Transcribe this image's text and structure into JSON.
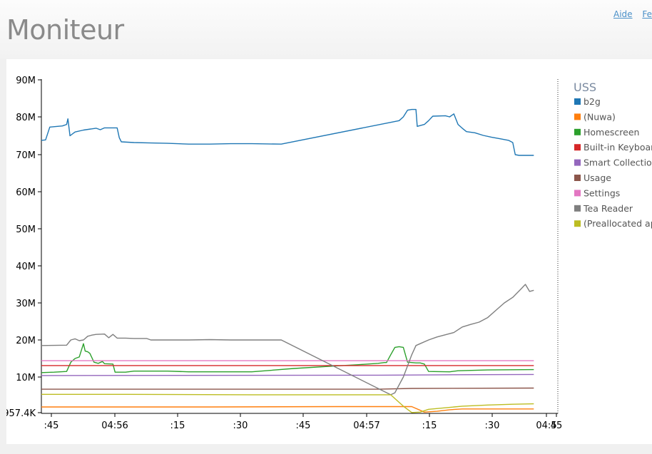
{
  "header": {
    "title": "Moniteur",
    "links": [
      "Aide",
      "Fe"
    ]
  },
  "chart_data": {
    "type": "line",
    "legend_title": "USS",
    "legend_position": "right",
    "y_ticks": [
      "957.4K",
      "10M",
      "20M",
      "30M",
      "40M",
      "50M",
      "60M",
      "70M",
      "80M",
      "90M"
    ],
    "x_ticks": [
      ":45",
      "04:56",
      ":15",
      ":30",
      ":45",
      "04:57",
      ":15",
      ":30",
      "04:5",
      "45"
    ],
    "ylim_mb": [
      0.957,
      90
    ],
    "xlim_s": [
      0,
      123
    ],
    "series": [
      {
        "name": "b2g",
        "color": "#1f77b4",
        "points": [
          [
            0,
            73.8
          ],
          [
            1,
            73.9
          ],
          [
            2,
            77.3
          ],
          [
            5,
            77.6
          ],
          [
            6,
            78
          ],
          [
            6.3,
            79.5
          ],
          [
            6.8,
            75
          ],
          [
            8,
            76
          ],
          [
            10,
            76.5
          ],
          [
            13,
            77
          ],
          [
            14,
            76.6
          ],
          [
            15,
            77.1
          ],
          [
            18,
            77.1
          ],
          [
            18.5,
            74.5
          ],
          [
            19,
            73.4
          ],
          [
            22,
            73.2
          ],
          [
            26,
            73.1
          ],
          [
            30,
            73
          ],
          [
            35,
            72.8
          ],
          [
            40,
            72.8
          ],
          [
            45,
            72.9
          ],
          [
            50,
            72.9
          ],
          [
            57,
            72.8
          ],
          [
            85,
            79
          ],
          [
            86,
            80
          ],
          [
            87,
            81.8
          ],
          [
            88,
            82
          ],
          [
            89,
            82
          ],
          [
            89.3,
            77.5
          ],
          [
            91,
            78
          ],
          [
            92,
            79
          ],
          [
            93,
            80.2
          ],
          [
            96,
            80.3
          ],
          [
            97,
            80
          ],
          [
            98,
            80.8
          ],
          [
            99,
            78
          ],
          [
            100,
            77
          ],
          [
            101,
            76.1
          ],
          [
            103,
            75.8
          ],
          [
            105,
            75.1
          ],
          [
            107,
            74.6
          ],
          [
            109,
            74.2
          ],
          [
            111,
            73.8
          ],
          [
            112,
            73.2
          ],
          [
            112.6,
            70
          ],
          [
            113.5,
            69.8
          ],
          [
            117,
            69.8
          ]
        ]
      },
      {
        "name": "(Nuwa)",
        "color": "#ff7f0e",
        "points": [
          [
            0,
            2.4
          ],
          [
            40,
            2.4
          ],
          [
            70,
            2.5
          ],
          [
            88,
            2.5
          ],
          [
            91,
            1.1
          ],
          [
            94,
            1.3
          ],
          [
            97,
            1.7
          ],
          [
            100,
            1.9
          ],
          [
            106,
            1.9
          ],
          [
            117,
            1.9
          ]
        ]
      },
      {
        "name": "Homescreen",
        "color": "#2ca02c",
        "points": [
          [
            0,
            11.2
          ],
          [
            3,
            11.3
          ],
          [
            6,
            11.5
          ],
          [
            7,
            14
          ],
          [
            8,
            15
          ],
          [
            9,
            15.4
          ],
          [
            10,
            19
          ],
          [
            10.4,
            17
          ],
          [
            11,
            16.8
          ],
          [
            11.5,
            16.4
          ],
          [
            12.5,
            14
          ],
          [
            13.5,
            13.7
          ],
          [
            14.5,
            14.2
          ],
          [
            15,
            13.6
          ],
          [
            17,
            13.5
          ],
          [
            17.5,
            11.3
          ],
          [
            20,
            11.3
          ],
          [
            22,
            11.6
          ],
          [
            30,
            11.6
          ],
          [
            35,
            11.4
          ],
          [
            50,
            11.4
          ],
          [
            60,
            12.3
          ],
          [
            70,
            13
          ],
          [
            75,
            13.3
          ],
          [
            80,
            13.7
          ],
          [
            81.5,
            13.9
          ],
          [
            82,
            13.9
          ],
          [
            83,
            16
          ],
          [
            84,
            18
          ],
          [
            85,
            18.2
          ],
          [
            86,
            18
          ],
          [
            87,
            14
          ],
          [
            89,
            13.8
          ],
          [
            90,
            13.8
          ],
          [
            91,
            13.5
          ],
          [
            92,
            11.5
          ],
          [
            97,
            11.4
          ],
          [
            99,
            11.7
          ],
          [
            106,
            11.9
          ],
          [
            117,
            12
          ]
        ]
      },
      {
        "name": "Built-in Keyboard",
        "color": "#d62728",
        "points": [
          [
            0,
            13.1
          ],
          [
            117,
            13.1
          ]
        ]
      },
      {
        "name": "Smart Collections",
        "color": "#9467bd",
        "points": [
          [
            0,
            10.4
          ],
          [
            80,
            10.5
          ],
          [
            95,
            10.6
          ],
          [
            117,
            10.7
          ]
        ]
      },
      {
        "name": "Usage",
        "color": "#8c564b",
        "points": [
          [
            0,
            6.9
          ],
          [
            80,
            6.9
          ],
          [
            88,
            7.1
          ],
          [
            117,
            7.2
          ]
        ]
      },
      {
        "name": "Settings",
        "color": "#e377c2",
        "points": [
          [
            0,
            14.4
          ],
          [
            117,
            14.4
          ]
        ]
      },
      {
        "name": "Tea Reader",
        "color": "#7f7f7f",
        "points": [
          [
            0,
            18.5
          ],
          [
            6,
            18.6
          ],
          [
            7,
            20
          ],
          [
            8,
            20.3
          ],
          [
            9,
            19.8
          ],
          [
            10,
            20
          ],
          [
            11,
            21
          ],
          [
            12,
            21.3
          ],
          [
            13,
            21.5
          ],
          [
            15,
            21.6
          ],
          [
            16,
            20.6
          ],
          [
            17,
            21.5
          ],
          [
            18,
            20.5
          ],
          [
            20,
            20.5
          ],
          [
            22,
            20.4
          ],
          [
            25,
            20.4
          ],
          [
            26,
            20
          ],
          [
            30,
            20
          ],
          [
            35,
            20
          ],
          [
            40,
            20.1
          ],
          [
            45,
            20
          ],
          [
            50,
            20
          ],
          [
            57,
            20
          ],
          [
            83,
            5.5
          ],
          [
            84,
            6
          ],
          [
            86,
            10
          ],
          [
            88,
            16
          ],
          [
            89,
            18.5
          ],
          [
            90,
            19
          ],
          [
            92,
            20
          ],
          [
            94,
            20.8
          ],
          [
            96,
            21.4
          ],
          [
            98,
            22
          ],
          [
            100,
            23.5
          ],
          [
            102,
            24.2
          ],
          [
            104,
            24.8
          ],
          [
            106,
            26
          ],
          [
            108,
            28
          ],
          [
            110,
            30
          ],
          [
            112,
            31.5
          ],
          [
            114,
            33.8
          ],
          [
            115,
            35
          ],
          [
            116,
            33.1
          ],
          [
            117,
            33.4
          ]
        ]
      },
      {
        "name": "(Preallocated app)",
        "color": "#bcbd22",
        "points": [
          [
            0,
            5.6
          ],
          [
            20,
            5.6
          ],
          [
            50,
            5.5
          ],
          [
            83,
            5.5
          ],
          [
            86,
            2.6
          ],
          [
            88,
            1
          ],
          [
            90,
            1.1
          ],
          [
            92,
            1.8
          ],
          [
            95,
            2.1
          ],
          [
            100,
            2.6
          ],
          [
            106,
            2.9
          ],
          [
            112,
            3.1
          ],
          [
            117,
            3.2
          ]
        ]
      }
    ]
  }
}
